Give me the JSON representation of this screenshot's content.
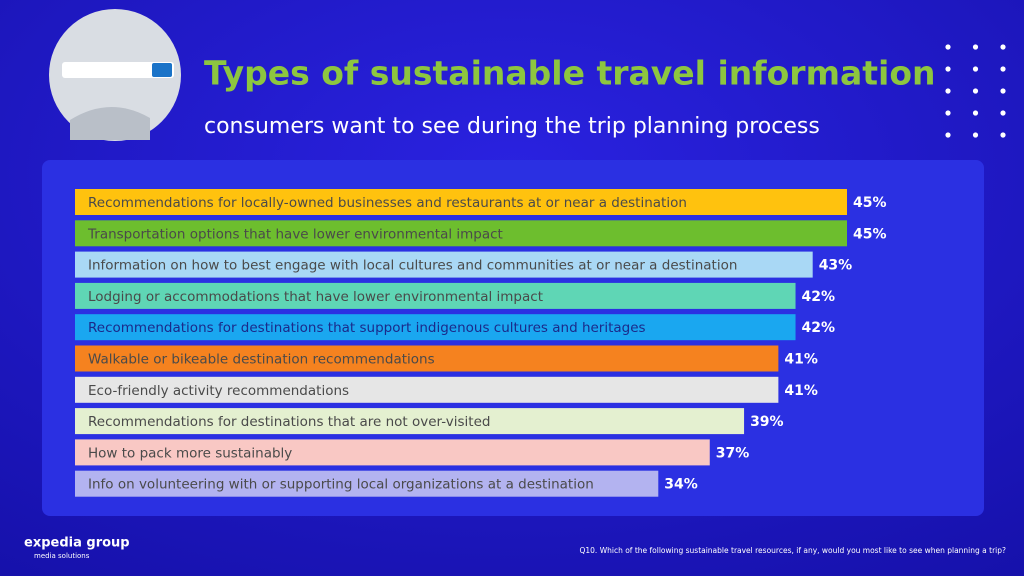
{
  "chart_data": {
    "type": "bar",
    "title": "Types of sustainable travel information",
    "subtitle": "consumers want to see during the trip planning process",
    "categories": [
      "Recommendations for locally-owned businesses and restaurants at or near a destination",
      "Transportation options that have lower environmental impact",
      "Information on how to best engage with local cultures and communities at or near a destination",
      "Lodging or accommodations that have lower environmental impact",
      "Recommendations for destinations that support indigenous cultures and heritages",
      "Walkable or bikeable destination recommendations",
      "Eco-friendly activity recommendations",
      "Recommendations for destinations that are not over-visited",
      "How to pack more sustainably",
      "Info on volunteering with or supporting local organizations at a destination"
    ],
    "values": [
      45,
      45,
      43,
      42,
      42,
      41,
      41,
      39,
      37,
      34
    ],
    "value_labels": [
      "45%",
      "45%",
      "43%",
      "42%",
      "42%",
      "41%",
      "41%",
      "39%",
      "37%",
      "34%"
    ],
    "colors": [
      "#ffc20e",
      "#6dbe2e",
      "#a9d8f5",
      "#5fd6b5",
      "#1aa7f0",
      "#f5821f",
      "#e6e6e6",
      "#e4f0d0",
      "#f9c8c4",
      "#b3b3f0"
    ],
    "footnote": "Q10. Which of the following sustainable travel resources, if any, would you most like to see when planning a trip?"
  },
  "logo": {
    "name": "expedia group",
    "tagline": "media solutions"
  }
}
